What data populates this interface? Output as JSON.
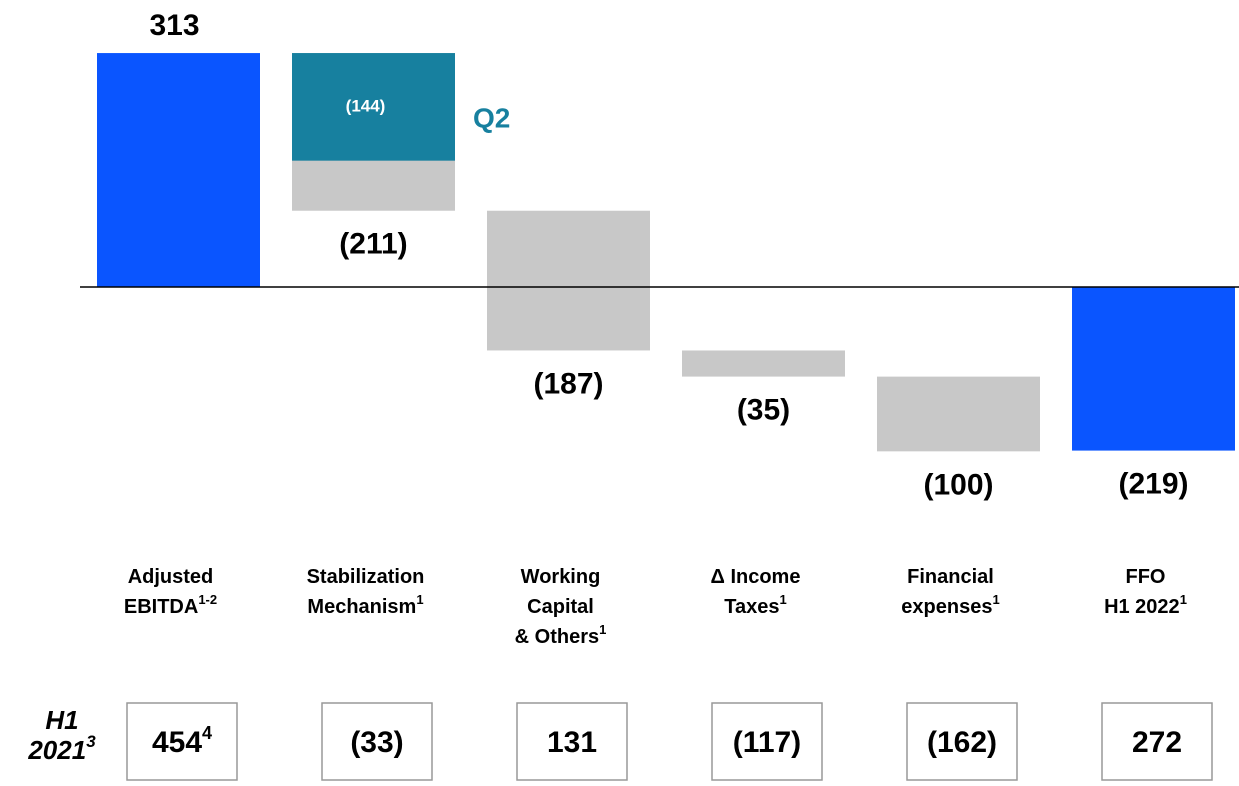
{
  "chart_data": {
    "type": "waterfall",
    "categories": [
      [
        "Adjusted",
        "EBITDA"
      ],
      [
        "Stabilization",
        "Mechanism"
      ],
      [
        "Working",
        "Capital",
        "& Others"
      ],
      [
        "Δ Income",
        "Taxes"
      ],
      [
        "Financial",
        "expenses"
      ],
      [
        "FFO",
        "H1 2022"
      ]
    ],
    "category_notes": [
      "1-2",
      "1",
      "1",
      "1",
      "1",
      "1"
    ],
    "values": [
      313,
      -211,
      -187,
      -35,
      -100,
      -219
    ],
    "value_labels": [
      "313",
      "(211)",
      "(187)",
      "(35)",
      "(100)",
      "(219)"
    ],
    "measures": [
      "absolute",
      "relative",
      "relative",
      "relative",
      "relative",
      "total"
    ],
    "colors": [
      "#0a55ff",
      "#c8c8c8",
      "#c8c8c8",
      "#c8c8c8",
      "#c8c8c8",
      "#0a55ff"
    ],
    "ylim": [
      -340,
      380
    ],
    "q2": {
      "name": "Q2",
      "value": -144,
      "value_label": "(144)",
      "color": "#17809f"
    },
    "comparison": {
      "label": [
        "H1",
        "2021"
      ],
      "label_note": "3",
      "values": [
        454,
        -33,
        131,
        -117,
        -162,
        272
      ],
      "value_labels": [
        "454",
        "(33)",
        "131",
        "(117)",
        "(162)",
        "272"
      ],
      "value_notes": [
        "4",
        null,
        null,
        null,
        null,
        null
      ]
    }
  }
}
